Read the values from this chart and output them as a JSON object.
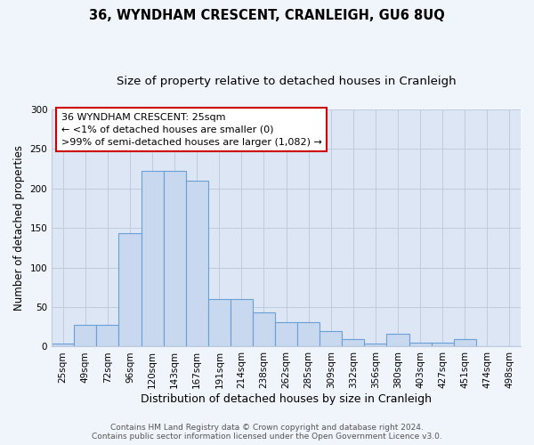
{
  "title": "36, WYNDHAM CRESCENT, CRANLEIGH, GU6 8UQ",
  "subtitle": "Size of property relative to detached houses in Cranleigh",
  "xlabel": "Distribution of detached houses by size in Cranleigh",
  "ylabel": "Number of detached properties",
  "categories": [
    "25sqm",
    "49sqm",
    "72sqm",
    "96sqm",
    "120sqm",
    "143sqm",
    "167sqm",
    "191sqm",
    "214sqm",
    "238sqm",
    "262sqm",
    "285sqm",
    "309sqm",
    "332sqm",
    "356sqm",
    "380sqm",
    "403sqm",
    "427sqm",
    "451sqm",
    "474sqm",
    "498sqm"
  ],
  "values": [
    4,
    28,
    28,
    143,
    222,
    222,
    210,
    60,
    60,
    43,
    31,
    31,
    20,
    10,
    4,
    16,
    5,
    5,
    9,
    1,
    1
  ],
  "bar_color": "#c8d8ee",
  "bar_edge_color": "#6a9fd8",
  "plot_bg_color": "#dce6f5",
  "fig_bg_color": "#f0f4fb",
  "ylim": [
    0,
    300
  ],
  "yticks": [
    0,
    50,
    100,
    150,
    200,
    250,
    300
  ],
  "annotation_title": "36 WYNDHAM CRESCENT: 25sqm",
  "annotation_line1": "← <1% of detached houses are smaller (0)",
  "annotation_line2": ">99% of semi-detached houses are larger (1,082) →",
  "annotation_box_color": "#ffffff",
  "annotation_border_color": "#cc0000",
  "footer_line1": "Contains HM Land Registry data © Crown copyright and database right 2024.",
  "footer_line2": "Contains public sector information licensed under the Open Government Licence v3.0.",
  "grid_color": "#c0ccdd",
  "title_fontsize": 10.5,
  "subtitle_fontsize": 9.5,
  "xlabel_fontsize": 9,
  "ylabel_fontsize": 8.5,
  "tick_fontsize": 7.5,
  "annotation_fontsize": 8,
  "footer_fontsize": 6.5
}
